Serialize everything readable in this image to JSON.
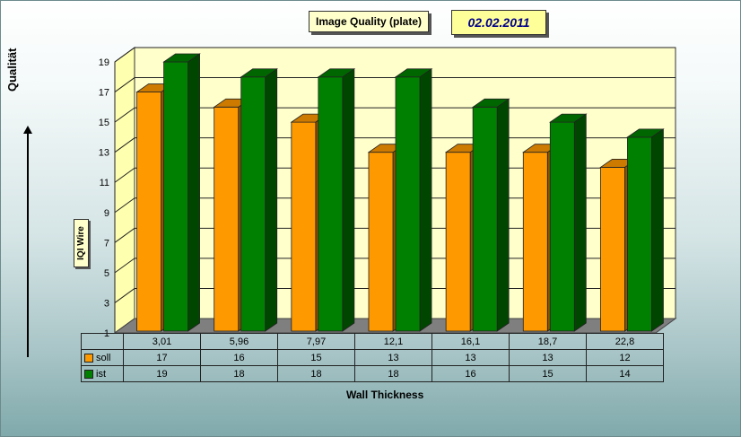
{
  "chart_data": {
    "type": "bar",
    "title": "Image Quality  (plate)",
    "date": "02.02.2011",
    "side_label": "Qualität",
    "ylabel": "IQI Wire",
    "xlabel": "Wall Thickness",
    "categories": [
      "3,01",
      "5,96",
      "7,97",
      "12,1",
      "16,1",
      "18,7",
      "22,8"
    ],
    "series": [
      {
        "name": "soll",
        "color": "#ff9900",
        "values": [
          17,
          16,
          15,
          13,
          13,
          13,
          12
        ]
      },
      {
        "name": "ist",
        "color": "#008000",
        "values": [
          19,
          18,
          18,
          18,
          16,
          15,
          14
        ]
      }
    ],
    "ylim": [
      1,
      19
    ],
    "yticks": [
      1,
      3,
      5,
      7,
      9,
      11,
      13,
      15,
      17,
      19
    ],
    "grid": true,
    "legend": "data-table"
  }
}
